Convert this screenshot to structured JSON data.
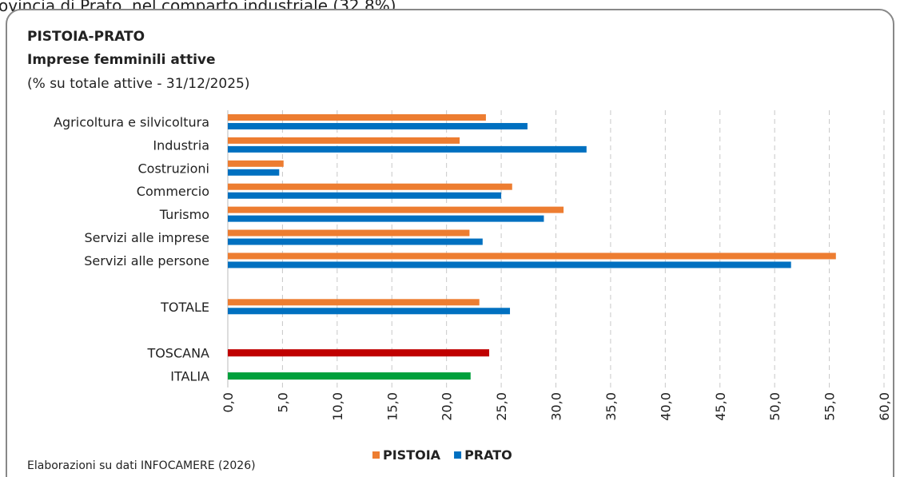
{
  "intro_text": "ovincia di Prato, nel comparto industriale (32,8%)",
  "chart_data": {
    "type": "hbar",
    "title": "PISTOIA-PRATO",
    "subtitle": "Imprese femminili attive",
    "note": "(% su totale attive - 31/12/2025)",
    "source": "Elaborazioni su dati INFOCAMERE (2026)",
    "categories": [
      "Agricoltura e silvicoltura",
      "Industria",
      "Costruzioni",
      "Commercio",
      "Turismo",
      "Servizi alle imprese",
      "Servizi alle persone",
      null,
      "TOTALE",
      null,
      "TOSCANA",
      "ITALIA"
    ],
    "series": [
      {
        "name": "PISTOIA",
        "color": "#ed7d31",
        "values": [
          23.6,
          21.2,
          5.1,
          26.0,
          30.7,
          22.1,
          55.6,
          null,
          23.0,
          null,
          null,
          null
        ]
      },
      {
        "name": "PRATO",
        "color": "#0070c0",
        "values": [
          27.4,
          32.8,
          4.7,
          25.0,
          28.9,
          23.3,
          51.5,
          null,
          25.8,
          null,
          null,
          null
        ]
      },
      {
        "colors": [
          null,
          null,
          null,
          null,
          null,
          null,
          null,
          null,
          null,
          null,
          "#c00000",
          "#00a03c"
        ],
        "values": [
          null,
          null,
          null,
          null,
          null,
          null,
          null,
          null,
          null,
          null,
          23.9,
          22.2
        ]
      }
    ],
    "xlim": [
      0,
      60
    ],
    "xticks": [
      {
        "value": 0,
        "label": "0,0"
      },
      {
        "value": 5,
        "label": "5,0"
      },
      {
        "value": 10,
        "label": "10,0"
      },
      {
        "value": 15,
        "label": "15,0"
      },
      {
        "value": 20,
        "label": "20,0"
      },
      {
        "value": 25,
        "label": "25,0"
      },
      {
        "value": 30,
        "label": "30,0"
      },
      {
        "value": 35,
        "label": "35,0"
      },
      {
        "value": 40,
        "label": "40,0"
      },
      {
        "value": 45,
        "label": "45,0"
      },
      {
        "value": 50,
        "label": "50,0"
      },
      {
        "value": 55,
        "label": "55,0"
      },
      {
        "value": 60,
        "label": "60,0"
      }
    ],
    "grid": true
  }
}
